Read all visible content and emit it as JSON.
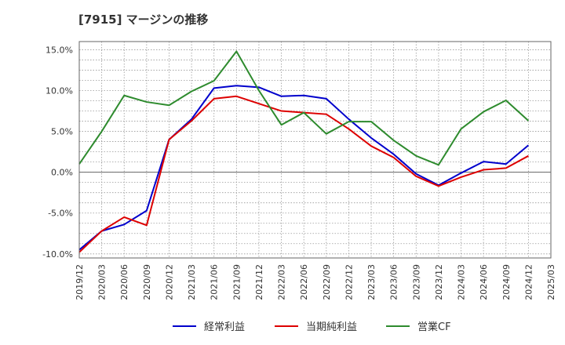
{
  "chart_data": {
    "type": "line",
    "title": "[7915]  マージンの推移",
    "xlabel": "",
    "ylabel": "",
    "ylim": [
      -10.5,
      16
    ],
    "y_ticks": [
      15,
      10,
      5,
      0,
      -5,
      -10
    ],
    "y_tick_labels": [
      "15.0%",
      "10.0%",
      "5.0%",
      "0.0%",
      "-5.0%",
      "-10.0%"
    ],
    "x": [
      "2019/12",
      "2020/03",
      "2020/06",
      "2020/09",
      "2020/12",
      "2021/03",
      "2021/06",
      "2021/09",
      "2021/12",
      "2022/03",
      "2022/06",
      "2022/09",
      "2022/12",
      "2023/03",
      "2023/06",
      "2023/09",
      "2023/12",
      "2024/03",
      "2024/06",
      "2024/09",
      "2024/12",
      "2025/03"
    ],
    "grid": true,
    "legend_position": "bottom",
    "series": [
      {
        "name": "経常利益",
        "color": "#0000cc",
        "values": [
          -9.5,
          -7.2,
          -6.4,
          -4.7,
          4.0,
          6.5,
          10.3,
          10.6,
          10.4,
          9.3,
          9.4,
          9.0,
          6.5,
          4.2,
          2.2,
          -0.2,
          -1.6,
          -0.1,
          1.3,
          1.0,
          3.3,
          null
        ]
      },
      {
        "name": "当期純利益",
        "color": "#dd0000",
        "values": [
          -9.8,
          -7.2,
          -5.5,
          -6.5,
          4.0,
          6.3,
          9.0,
          9.3,
          8.4,
          7.5,
          7.3,
          7.1,
          5.3,
          3.2,
          1.8,
          -0.5,
          -1.7,
          -0.6,
          0.3,
          0.5,
          2.0,
          null
        ]
      },
      {
        "name": "営業CF",
        "color": "#2e8b2e",
        "values": [
          1.0,
          5.0,
          9.4,
          8.6,
          8.2,
          9.9,
          11.2,
          14.8,
          10.0,
          5.8,
          7.3,
          4.7,
          6.2,
          6.2,
          3.9,
          2.0,
          0.9,
          5.3,
          7.4,
          8.8,
          6.3,
          null
        ]
      }
    ]
  }
}
